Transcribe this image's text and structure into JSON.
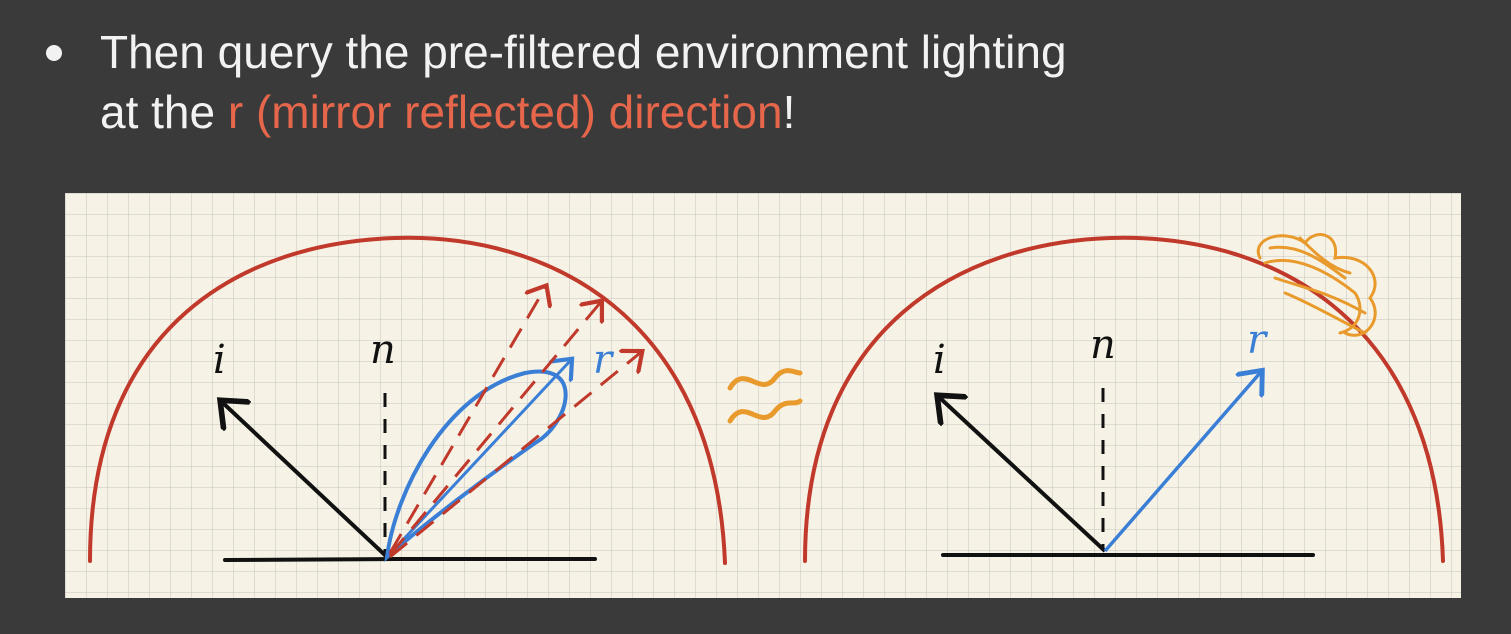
{
  "slide": {
    "bullet": {
      "line1": "Then query the pre-filtered environment lighting",
      "line2_prefix": "at the ",
      "line2_highlight": "r (mirror reflected) direction",
      "line2_suffix": "!"
    }
  },
  "diagram": {
    "left": {
      "incident_label": "i",
      "normal_label": "n",
      "reflect_label": "r"
    },
    "approx_symbol": "≈",
    "right": {
      "incident_label": "i",
      "normal_label": "n",
      "reflect_label": "r"
    }
  },
  "colors": {
    "background": "#3a3a3a",
    "text": "#f2f2f2",
    "highlight": "#e5664a",
    "paper": "#f6f3e6",
    "hemisphere": "#c0392b",
    "reflect_blue": "#3a7fd5",
    "ink": "#111111",
    "glow_orange": "#e89a2c"
  }
}
